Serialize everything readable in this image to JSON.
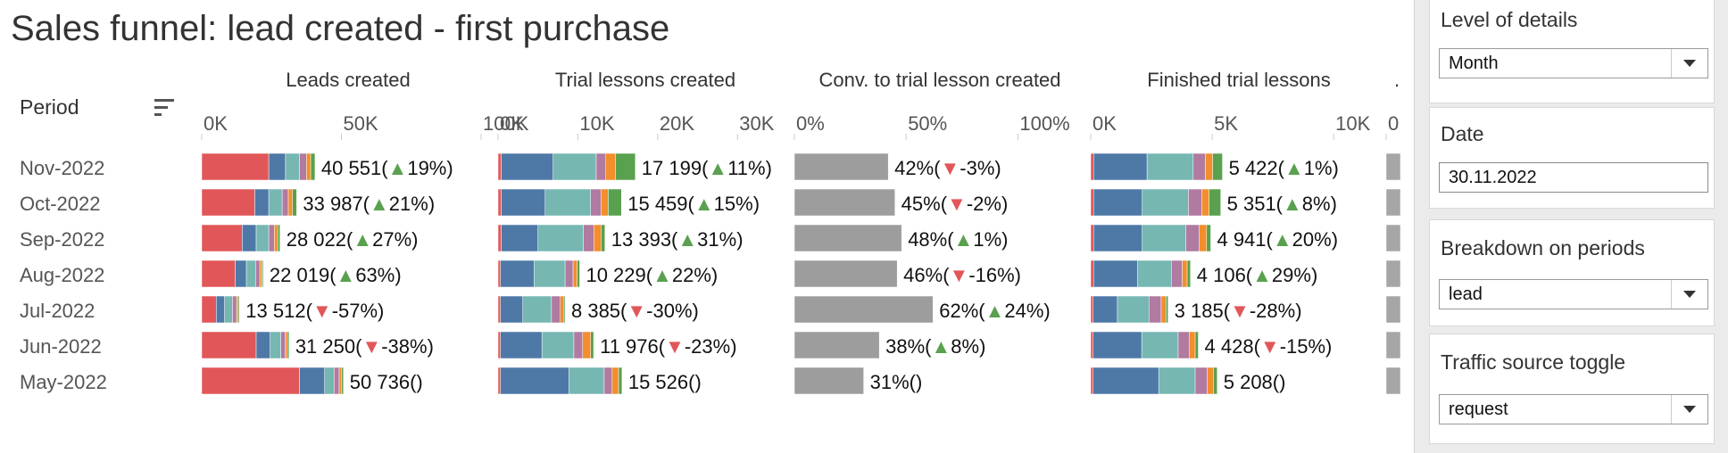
{
  "page": {
    "title": "Sales funnel: lead created - first purchase",
    "period_header": "Period"
  },
  "filters": [
    {
      "label": "Level of details",
      "value": "Month",
      "kind": "dropdown"
    },
    {
      "label": "Date",
      "value": "30.11.2022",
      "kind": "text"
    },
    {
      "label": "Breakdown on periods",
      "value": "lead",
      "kind": "dropdown"
    },
    {
      "label": "Traffic source toggle",
      "value": "request",
      "kind": "dropdown"
    }
  ],
  "colors": {
    "segments": [
      "#e15759",
      "#4e79a7",
      "#76b7b2",
      "#b07aa1",
      "#f28e2b",
      "#59a14f"
    ],
    "conversion": "#9d9d9d",
    "up": "#59a14f",
    "down": "#e15759"
  },
  "chart_data": {
    "type": "bar",
    "periods": [
      "Nov-2022",
      "Oct-2022",
      "Sep-2022",
      "Aug-2022",
      "Jul-2022",
      "Jun-2022",
      "May-2022"
    ],
    "panels": [
      {
        "title": "Leads created",
        "stacked": true,
        "axis_max": 100000,
        "ticks": [
          {
            "v": 0,
            "label": "0K"
          },
          {
            "v": 50000,
            "label": "50K"
          },
          {
            "v": 100000,
            "label": "100K"
          }
        ],
        "rows": [
          {
            "segments": [
              24000,
              6000,
              5000,
              2500,
              1500,
              1551
            ],
            "label": "40 551(",
            "dir": "up",
            "change": "19%",
            "close": ")"
          },
          {
            "segments": [
              19000,
              5000,
              4800,
              2200,
              1500,
              1487
            ],
            "label": "33 987(",
            "dir": "up",
            "change": "21%",
            "close": ")"
          },
          {
            "segments": [
              14500,
              5000,
              4500,
              2000,
              1200,
              822
            ],
            "label": "28 022(",
            "dir": "up",
            "change": "27%",
            "close": ")"
          },
          {
            "segments": [
              12000,
              4000,
              3300,
              1500,
              800,
              419
            ],
            "label": "22 019(",
            "dir": "up",
            "change": "63%",
            "close": ")"
          },
          {
            "segments": [
              5200,
              3000,
              2800,
              1500,
              612,
              400
            ],
            "label": "13 512(",
            "dir": "down",
            "change": "-57%",
            "close": ")"
          },
          {
            "segments": [
              19500,
              5000,
              3800,
              1600,
              750,
              600
            ],
            "label": "31 250(",
            "dir": "down",
            "change": "-38%",
            "close": ")"
          },
          {
            "segments": [
              35000,
              9000,
              3400,
              1800,
              900,
              636
            ],
            "label": "50 736(",
            "dir": "",
            "change": "",
            "close": ")"
          }
        ]
      },
      {
        "title": "Trial lessons created",
        "stacked": true,
        "axis_max": 35000,
        "ticks": [
          {
            "v": 0,
            "label": "0K"
          },
          {
            "v": 10000,
            "label": "10K"
          },
          {
            "v": 20000,
            "label": "20K"
          },
          {
            "v": 30000,
            "label": "30K"
          }
        ],
        "rows": [
          {
            "segments": [
              400,
              6500,
              5400,
              1200,
              1200,
              2499
            ],
            "label": "17 199(",
            "dir": "up",
            "change": "11%",
            "close": ")"
          },
          {
            "segments": [
              400,
              5500,
              5700,
              1300,
              900,
              1659
            ],
            "label": "15 459(",
            "dir": "up",
            "change": "15%",
            "close": ")"
          },
          {
            "segments": [
              400,
              4600,
              5700,
              1300,
              900,
              493
            ],
            "label": "13 393(",
            "dir": "up",
            "change": "31%",
            "close": ")"
          },
          {
            "segments": [
              300,
              4200,
              3900,
              1000,
              500,
              329
            ],
            "label": "10 229(",
            "dir": "up",
            "change": "22%",
            "close": ")"
          },
          {
            "segments": [
              300,
              2800,
              3600,
              1100,
              400,
              185
            ],
            "label": "8 385(",
            "dir": "down",
            "change": "-30%",
            "close": ")"
          },
          {
            "segments": [
              300,
              5200,
              4000,
              1100,
              1000,
              376
            ],
            "label": "11 976(",
            "dir": "down",
            "change": "-23%",
            "close": ")"
          },
          {
            "segments": [
              300,
              8600,
              4400,
              1000,
              800,
              426
            ],
            "label": "15 526(",
            "dir": "",
            "change": "",
            "close": ")"
          }
        ]
      },
      {
        "title": "Conv. to trial lesson created",
        "stacked": false,
        "axis_max": 1.25,
        "ticks": [
          {
            "v": 0,
            "label": "0%"
          },
          {
            "v": 0.5,
            "label": "50%"
          },
          {
            "v": 1,
            "label": "100%"
          }
        ],
        "rows": [
          {
            "segments": [
              0.42
            ],
            "label": "42%(",
            "dir": "down",
            "change": "-3%",
            "close": ")"
          },
          {
            "segments": [
              0.45
            ],
            "label": "45%(",
            "dir": "down",
            "change": "-2%",
            "close": ")"
          },
          {
            "segments": [
              0.48
            ],
            "label": "48%(",
            "dir": "up",
            "change": "1%",
            "close": ")"
          },
          {
            "segments": [
              0.46
            ],
            "label": "46%(",
            "dir": "down",
            "change": "-16%",
            "close": ")"
          },
          {
            "segments": [
              0.62
            ],
            "label": "62%(",
            "dir": "up",
            "change": "24%",
            "close": ")"
          },
          {
            "segments": [
              0.38
            ],
            "label": "38%(",
            "dir": "up",
            "change": "8%",
            "close": ")"
          },
          {
            "segments": [
              0.31
            ],
            "label": "31%(",
            "dir": "",
            "change": "",
            "close": ")"
          }
        ]
      },
      {
        "title": "Finished trial lessons",
        "stacked": true,
        "axis_max": 11500,
        "ticks": [
          {
            "v": 0,
            "label": "0K"
          },
          {
            "v": 5000,
            "label": "5K"
          },
          {
            "v": 10000,
            "label": "10K"
          }
        ],
        "rows": [
          {
            "segments": [
              120,
              2200,
              1900,
              500,
              300,
              402
            ],
            "label": "5 422(",
            "dir": "up",
            "change": "1%",
            "close": ")"
          },
          {
            "segments": [
              120,
              2000,
              1900,
              550,
              300,
              481
            ],
            "label": "5 351(",
            "dir": "up",
            "change": "8%",
            "close": ")"
          },
          {
            "segments": [
              120,
              2000,
              1800,
              550,
              300,
              171
            ],
            "label": "4 941(",
            "dir": "up",
            "change": "20%",
            "close": ")"
          },
          {
            "segments": [
              120,
              1800,
              1400,
              450,
              200,
              136
            ],
            "label": "4 106(",
            "dir": "up",
            "change": "29%",
            "close": ")"
          },
          {
            "segments": [
              100,
              1000,
              1300,
              500,
              200,
              85
            ],
            "label": "3 185(",
            "dir": "down",
            "change": "-28%",
            "close": ")"
          },
          {
            "segments": [
              100,
              2000,
              1500,
              450,
              250,
              128
            ],
            "label": "4 428(",
            "dir": "down",
            "change": "-15%",
            "close": ")"
          },
          {
            "segments": [
              100,
              2700,
              1500,
              500,
              250,
              158
            ],
            "label": "5 208(",
            "dir": "",
            "change": "",
            "close": ")"
          }
        ]
      },
      {
        "title": ".",
        "stacked": false,
        "axis_max": 1,
        "ticks": [
          {
            "v": 0,
            "label": "0"
          }
        ],
        "rows": [
          {
            "segments": [
              1
            ],
            "label": "",
            "dir": "",
            "change": "",
            "close": ""
          },
          {
            "segments": [
              1
            ],
            "label": "",
            "dir": "",
            "change": "",
            "close": ""
          },
          {
            "segments": [
              1
            ],
            "label": "",
            "dir": "",
            "change": "",
            "close": ""
          },
          {
            "segments": [
              1
            ],
            "label": "",
            "dir": "",
            "change": "",
            "close": ""
          },
          {
            "segments": [
              1
            ],
            "label": "",
            "dir": "",
            "change": "",
            "close": ""
          },
          {
            "segments": [
              1
            ],
            "label": "",
            "dir": "",
            "change": "",
            "close": ""
          },
          {
            "segments": [
              1
            ],
            "label": "",
            "dir": "",
            "change": "",
            "close": ""
          }
        ]
      }
    ]
  }
}
